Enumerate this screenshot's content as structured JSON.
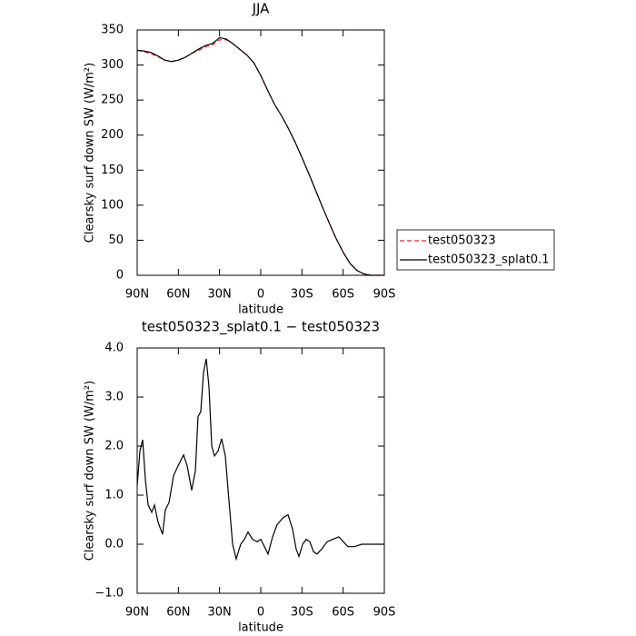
{
  "chart_data": [
    {
      "type": "line",
      "title": "JJA",
      "xlabel": "latitude",
      "ylabel": "Clearsky surf down SW (W/m²)",
      "xlim": [
        90,
        -90
      ],
      "xticks": [
        {
          "value": 90,
          "label": "90N"
        },
        {
          "value": 60,
          "label": "60N"
        },
        {
          "value": 30,
          "label": "30N"
        },
        0,
        {
          "value": -30,
          "label": "30S"
        },
        {
          "value": -60,
          "label": "60S"
        },
        {
          "value": -90,
          "label": "90S"
        }
      ],
      "ylim": [
        0,
        350
      ],
      "yticks": [
        0,
        50,
        100,
        150,
        200,
        250,
        300,
        350
      ],
      "legend": "right",
      "x": [
        90,
        85,
        80,
        75,
        70,
        65,
        60,
        55,
        50,
        45,
        40,
        35,
        30,
        25,
        20,
        15,
        10,
        5,
        0,
        -5,
        -10,
        -15,
        -20,
        -25,
        -30,
        -35,
        -40,
        -45,
        -50,
        -55,
        -60,
        -65,
        -70,
        -75,
        -80,
        -85,
        -90
      ],
      "series": [
        {
          "name": "test050323",
          "color": "#e8262a",
          "line_style": "dashed",
          "values": [
            321,
            319,
            316,
            312,
            307,
            305,
            307,
            311,
            317,
            321,
            326,
            329,
            336,
            336,
            330,
            322,
            314,
            303,
            285,
            264,
            244,
            228,
            210,
            190,
            168,
            145,
            121,
            97,
            74,
            52,
            33,
            17,
            7,
            2,
            0,
            0,
            0
          ]
        },
        {
          "name": "test050323_splat0.1",
          "color": "#000000",
          "line_style": "solid",
          "values": [
            321,
            320,
            318,
            313,
            307,
            305,
            307,
            311,
            317,
            323,
            328,
            331,
            339,
            337,
            330,
            322,
            314,
            303,
            285,
            264,
            244,
            228,
            210,
            190,
            168,
            145,
            121,
            97,
            74,
            52,
            33,
            17,
            7,
            2,
            0,
            0,
            0
          ]
        }
      ]
    },
    {
      "type": "line",
      "title": "test050323_splat0.1 − test050323",
      "xlabel": "latitude",
      "ylabel": "Clearsky surf down SW (W/m²)",
      "xlim": [
        90,
        -90
      ],
      "xticks": [
        {
          "value": 90,
          "label": "90N"
        },
        {
          "value": 60,
          "label": "60N"
        },
        {
          "value": 30,
          "label": "30N"
        },
        0,
        {
          "value": -30,
          "label": "30S"
        },
        {
          "value": -60,
          "label": "60S"
        },
        {
          "value": -90,
          "label": "90S"
        }
      ],
      "ylim": [
        -1,
        4
      ],
      "yticks": [
        {
          "value": -1,
          "label": "−1.0"
        },
        {
          "value": 0,
          "label": "0.0"
        },
        {
          "value": 1,
          "label": "1.0"
        },
        {
          "value": 2,
          "label": "2.0"
        },
        {
          "value": 3,
          "label": "3.0"
        },
        {
          "value": 4,
          "label": "4.0"
        }
      ],
      "color": "#000000",
      "x": [
        90,
        88,
        86,
        84,
        82,
        79.4,
        77.4,
        74.8,
        71.5,
        69.5,
        66.8,
        63.5,
        60.2,
        56.2,
        53.6,
        50.3,
        47.6,
        45.7,
        43.7,
        41.7,
        39.7,
        37.7,
        35.7,
        33.7,
        31.1,
        28.5,
        25.8,
        23.2,
        20.5,
        17.9,
        14.6,
        11.9,
        9.3,
        6,
        2.6,
        0,
        -2.7,
        -5.3,
        -8.6,
        -11.9,
        -16.6,
        -19.9,
        -23.2,
        -25.8,
        -27.8,
        -30.5,
        -33.1,
        -35.7,
        -38.4,
        -41,
        -44.3,
        -48.3,
        -52.3,
        -56.9,
        -60.2,
        -63.5,
        -68.2,
        -73.5,
        -81.4,
        -90
      ],
      "values": [
        1.2,
        1.9,
        2.13,
        1.3,
        0.8,
        0.65,
        0.8,
        0.45,
        0.2,
        0.7,
        0.85,
        1.4,
        1.6,
        1.82,
        1.6,
        1.1,
        1.5,
        2.6,
        2.7,
        3.5,
        3.78,
        3.2,
        2.0,
        1.8,
        1.9,
        2.15,
        1.8,
        0.9,
        0.0,
        -0.3,
        0.0,
        0.1,
        0.25,
        0.1,
        0.05,
        0.1,
        -0.05,
        -0.2,
        0.15,
        0.4,
        0.55,
        0.6,
        0.3,
        -0.1,
        -0.25,
        0.0,
        0.1,
        0.05,
        -0.15,
        -0.2,
        -0.1,
        0.05,
        0.1,
        0.15,
        0.05,
        -0.05,
        -0.05,
        0.0,
        0.0,
        0.0
      ]
    }
  ]
}
